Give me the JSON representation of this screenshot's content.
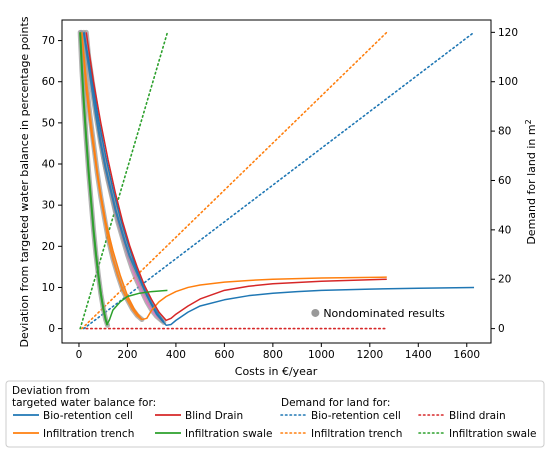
{
  "chart_data": {
    "type": "line",
    "xlabel": "Costs in €/year",
    "ylabel_left": "Deviation from targeted water balance in percentage points",
    "ylabel_right_base": "Demand for land in m",
    "ylabel_right_sup": "2",
    "xlim": [
      -70,
      1700
    ],
    "ylim_left": [
      -3.5,
      75
    ],
    "ylim_right": [
      -5.83,
      125
    ],
    "x_ticks": [
      0,
      200,
      400,
      600,
      800,
      1000,
      1200,
      1400,
      1600
    ],
    "y_left_ticks": [
      0,
      10,
      20,
      30,
      40,
      50,
      60,
      70
    ],
    "y_right_ticks": [
      0,
      20,
      40,
      60,
      80,
      100,
      120
    ],
    "grid": false,
    "colors": {
      "bio_retention_cell": "#1f77b4",
      "infiltration_trench": "#ff7f0e",
      "blind_drain": "#d62728",
      "infiltration_swale": "#2ca02c",
      "nondominated": "#999999"
    },
    "deviation_series": [
      {
        "name": "Bio-retention cell",
        "color": "#1f77b4",
        "x": [
          20,
          50,
          80,
          110,
          140,
          170,
          200,
          240,
          280,
          320,
          360,
          380,
          400,
          450,
          500,
          600,
          700,
          800,
          900,
          1000,
          1200,
          1400,
          1630
        ],
        "y": [
          72,
          62,
          51,
          42,
          34,
          27,
          21,
          14,
          8,
          3.5,
          0.8,
          1.0,
          2.0,
          4.0,
          5.5,
          7.0,
          8.0,
          8.6,
          9.0,
          9.3,
          9.6,
          9.8,
          10.0
        ]
      },
      {
        "name": "Infiltration trench",
        "color": "#ff7f0e",
        "x": [
          12,
          30,
          50,
          80,
          110,
          140,
          170,
          200,
          230,
          260,
          280,
          300,
          330,
          360,
          400,
          450,
          500,
          600,
          700,
          800,
          1000,
          1270
        ],
        "y": [
          72,
          58,
          48,
          36,
          26,
          19,
          13,
          8,
          4.5,
          2.2,
          2.5,
          4.5,
          6.5,
          7.8,
          9.0,
          10.0,
          10.6,
          11.3,
          11.7,
          12.0,
          12.3,
          12.5
        ]
      },
      {
        "name": "Blind Drain",
        "color": "#d62728",
        "x": [
          30,
          60,
          90,
          120,
          150,
          180,
          210,
          240,
          270,
          300,
          330,
          360,
          380,
          400,
          450,
          500,
          600,
          700,
          800,
          1000,
          1270
        ],
        "y": [
          72,
          60,
          50,
          41,
          33,
          26,
          20,
          15,
          10.5,
          7,
          4,
          2,
          2.5,
          3.5,
          5.5,
          7.2,
          9.3,
          10.3,
          10.9,
          11.5,
          12.0
        ]
      },
      {
        "name": "Infiltration swale",
        "color": "#2ca02c",
        "x": [
          5,
          20,
          40,
          60,
          80,
          100,
          115,
          125,
          140,
          170,
          200,
          250,
          300,
          365
        ],
        "y": [
          72,
          55,
          38,
          24,
          13,
          5,
          1,
          2,
          4.5,
          6.5,
          7.8,
          8.6,
          9.0,
          9.3
        ]
      }
    ],
    "land_demand_series": [
      {
        "name": "Bio-retention cell",
        "color": "#1f77b4",
        "x": [
          20,
          1630
        ],
        "y": [
          0,
          120
        ]
      },
      {
        "name": "Infiltration trench",
        "color": "#ff7f0e",
        "x": [
          12,
          1270
        ],
        "y": [
          0,
          120
        ]
      },
      {
        "name": "Blind drain",
        "color": "#d62728",
        "x": [
          30,
          1270
        ],
        "y": [
          0,
          0
        ]
      },
      {
        "name": "Infiltration swale",
        "color": "#2ca02c",
        "x": [
          5,
          365
        ],
        "y": [
          0,
          120
        ]
      }
    ],
    "nondominated_sets": [
      {
        "color": "#e377c2",
        "x": [
          30,
          40,
          55,
          70,
          85,
          100,
          120,
          140,
          160,
          180,
          200,
          220,
          240,
          260,
          280,
          300,
          320,
          340
        ],
        "y": [
          72,
          66,
          60,
          54,
          48,
          42,
          36,
          31,
          26,
          22,
          18,
          14.5,
          11.5,
          9,
          6.5,
          4.5,
          3,
          2
        ]
      },
      {
        "color": "#ff7f0e",
        "x": [
          10,
          20,
          30,
          45,
          60,
          75,
          90,
          105,
          120,
          140,
          160,
          180,
          200,
          220,
          240,
          260
        ],
        "y": [
          72,
          66,
          60,
          52,
          45,
          38,
          32,
          27,
          22,
          17,
          13,
          9.5,
          7,
          4.8,
          3.2,
          2.2
        ]
      },
      {
        "color": "#1f77b4",
        "x": [
          20,
          35,
          50,
          70,
          90,
          110,
          130,
          150,
          170,
          190,
          210,
          240,
          270,
          300,
          330,
          350
        ],
        "y": [
          72,
          66,
          60,
          52,
          45,
          39,
          34,
          29,
          25,
          21,
          17.5,
          13.5,
          9.5,
          6,
          3.2,
          1.5
        ]
      },
      {
        "color": "#2ca02c",
        "x": [
          5,
          12,
          20,
          30,
          40,
          50,
          60,
          70,
          80,
          90,
          100,
          110,
          118
        ],
        "y": [
          72,
          63,
          55,
          46,
          38,
          31,
          24,
          18,
          13,
          8.5,
          5,
          2.2,
          0.8
        ]
      }
    ],
    "annotation": {
      "text": "Nondominated results",
      "x": 1000,
      "y": 3.8
    },
    "legend": {
      "placement": "bottom",
      "group1_title_line1": "Deviation from",
      "group1_title_line2": "targeted water balance for:",
      "group1_entries": [
        {
          "label": "Bio-retention cell",
          "color": "#1f77b4",
          "style": "solid"
        },
        {
          "label": "Blind Drain",
          "color": "#d62728",
          "style": "solid"
        },
        {
          "label": "Infiltration trench",
          "color": "#ff7f0e",
          "style": "solid"
        },
        {
          "label": "Infiltration swale",
          "color": "#2ca02c",
          "style": "solid"
        }
      ],
      "group2_title": "Demand for land for:",
      "group2_entries": [
        {
          "label": "Bio-retention cell",
          "color": "#1f77b4",
          "style": "dotted"
        },
        {
          "label": "Blind drain",
          "color": "#d62728",
          "style": "dotted"
        },
        {
          "label": "Infiltration trench",
          "color": "#ff7f0e",
          "style": "dotted"
        },
        {
          "label": "Infiltration swale",
          "color": "#2ca02c",
          "style": "dotted"
        }
      ]
    }
  }
}
